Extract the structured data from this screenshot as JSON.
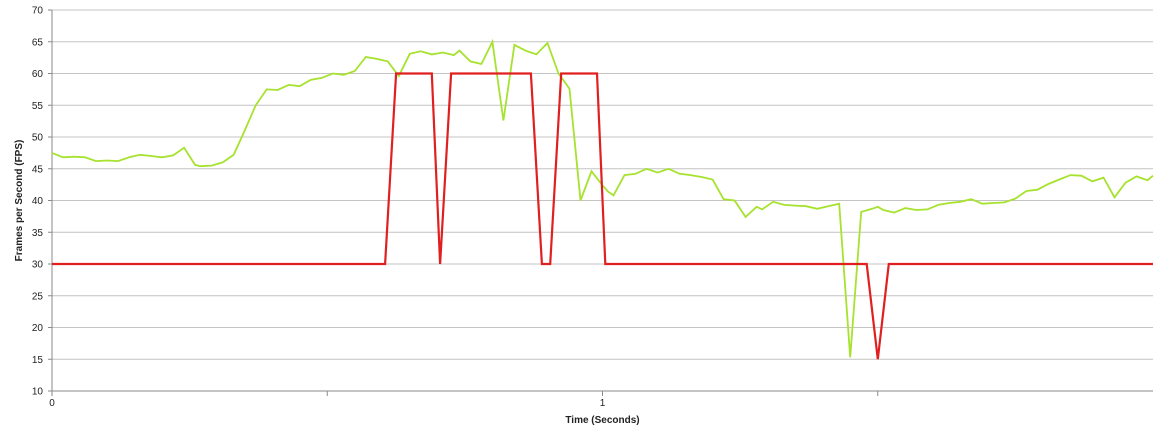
{
  "chart_data": {
    "type": "line",
    "title": "",
    "xlabel": "Time (Seconds)",
    "ylabel": "Frames per Second (FPS)",
    "xlim": [
      0,
      2
    ],
    "ylim": [
      10,
      70
    ],
    "x_ticks": [
      0,
      1
    ],
    "x_tick_labels": [
      "0",
      "1"
    ],
    "x_minor_ticks": [
      0.5,
      1.5
    ],
    "y_ticks": [
      10,
      15,
      20,
      25,
      30,
      35,
      40,
      45,
      50,
      55,
      60,
      65,
      70
    ],
    "grid": "horizontal",
    "legend": "none",
    "series": [
      {
        "color": "#a6e22e",
        "x": [
          0,
          0.02,
          0.04,
          0.06,
          0.08,
          0.1,
          0.12,
          0.14,
          0.16,
          0.18,
          0.2,
          0.22,
          0.24,
          0.26,
          0.27,
          0.29,
          0.31,
          0.33,
          0.35,
          0.37,
          0.39,
          0.41,
          0.43,
          0.45,
          0.47,
          0.49,
          0.51,
          0.53,
          0.55,
          0.57,
          0.59,
          0.61,
          0.63,
          0.65,
          0.67,
          0.69,
          0.71,
          0.73,
          0.74,
          0.76,
          0.78,
          0.8,
          0.82,
          0.84,
          0.86,
          0.88,
          0.9,
          0.92,
          0.94,
          0.96,
          0.98,
          1.0,
          1.01,
          1.02,
          1.04,
          1.06,
          1.08,
          1.1,
          1.12,
          1.14,
          1.16,
          1.18,
          1.2,
          1.22,
          1.24,
          1.26,
          1.28,
          1.29,
          1.31,
          1.33,
          1.35,
          1.37,
          1.39,
          1.41,
          1.43,
          1.45,
          1.47,
          1.49,
          1.5,
          1.51,
          1.53,
          1.55,
          1.57,
          1.59,
          1.61,
          1.63,
          1.65,
          1.67,
          1.69,
          1.71,
          1.73,
          1.75,
          1.77,
          1.79,
          1.81,
          1.83,
          1.85,
          1.87,
          1.89,
          1.91,
          1.93,
          1.95,
          1.97,
          1.99,
          2.0
        ],
        "values": [
          47.5,
          46.8,
          46.9,
          46.8,
          46.2,
          46.3,
          46.2,
          46.8,
          47.2,
          47.0,
          46.8,
          47.1,
          48.3,
          45.6,
          45.4,
          45.5,
          46.0,
          47.2,
          51.0,
          55.0,
          57.5,
          57.4,
          58.2,
          58.0,
          59.0,
          59.3,
          60.0,
          59.8,
          60.4,
          62.6,
          62.3,
          61.9,
          59.6,
          63.1,
          63.5,
          63.0,
          63.3,
          62.9,
          63.6,
          61.9,
          61.5,
          65.0,
          52.6,
          64.5,
          63.6,
          63.0,
          64.8,
          60.0,
          57.6,
          40.0,
          44.6,
          42.4,
          41.4,
          40.8,
          44.0,
          44.2,
          45.0,
          44.4,
          45.0,
          44.2,
          44.0,
          43.7,
          43.3,
          40.2,
          40.0,
          37.4,
          39.0,
          38.6,
          39.8,
          39.3,
          39.2,
          39.1,
          38.7,
          39.1,
          39.5,
          15.3,
          38.2,
          38.7,
          39.0,
          38.5,
          38.1,
          38.8,
          38.5,
          38.6,
          39.3,
          39.6,
          39.8,
          40.2,
          39.5,
          39.6,
          39.7,
          40.3,
          41.5,
          41.7,
          42.6,
          43.3,
          44.0,
          43.9,
          43.0,
          43.6,
          40.5,
          42.8,
          43.8,
          43.2,
          43.9
        ]
      },
      {
        "color": "#e02020",
        "x": [
          0,
          0.605,
          0.625,
          0.69,
          0.705,
          0.725,
          0.87,
          0.89,
          0.905,
          0.925,
          0.99,
          1.005,
          1.48,
          1.5,
          1.52,
          2.0
        ],
        "values": [
          30,
          30,
          60,
          60,
          30,
          60,
          60,
          30,
          30,
          60,
          60,
          30,
          30,
          15,
          30,
          30
        ]
      }
    ]
  }
}
